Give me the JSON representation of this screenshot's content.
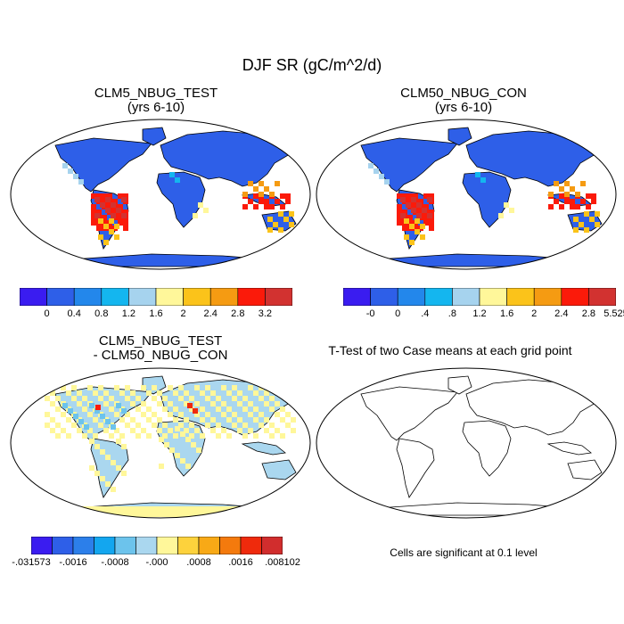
{
  "figure": {
    "title": "DJF SR (gC/m^2/d)",
    "panels": [
      {
        "id": "test",
        "title_line1": "CLM5_NBUG_TEST",
        "title_line2": "(yrs 6-10)",
        "colorbar": {
          "colors": [
            "#3a1cf0",
            "#2e5fe8",
            "#2387eb",
            "#14b6ef",
            "#a6d3ee",
            "#fff79a",
            "#fbc31a",
            "#f59b12",
            "#fb1a0a",
            "#d23230"
          ],
          "labels": [
            "0",
            "0.4",
            "0.8",
            "1.2",
            "1.6",
            "2",
            "2.4",
            "2.8",
            "3.2"
          ]
        }
      },
      {
        "id": "control",
        "title_line1": "CLM50_NBUG_CON",
        "title_line2": "(yrs 6-10)",
        "colorbar": {
          "colors": [
            "#3a1cf0",
            "#2e5fe8",
            "#2387eb",
            "#14b6ef",
            "#a6d3ee",
            "#fff79a",
            "#fbc31a",
            "#f59b12",
            "#fb1a0a",
            "#d23230"
          ],
          "labels": [
            "-0",
            "0",
            ".4",
            ".8",
            "1.2",
            "1.6",
            "2",
            "2.4",
            "2.8",
            "5.525"
          ]
        }
      },
      {
        "id": "difference",
        "title_line1": "CLM5_NBUG_TEST",
        "title_line2": "- CLM50_NBUG_CON",
        "colorbar": {
          "colors": [
            "#3a1cf0",
            "#2e5fe8",
            "#2c7fea",
            "#13a6ef",
            "#6cc3ec",
            "#aad7ef",
            "#fff79a",
            "#fdd23c",
            "#f8a916",
            "#f47a0d",
            "#ef2a0c",
            "#d12d2d"
          ],
          "labels": [
            "-.031573",
            "-.0016",
            "-.0008",
            "-.000",
            ".0008",
            ".0016",
            ".008102"
          ]
        }
      },
      {
        "id": "ttest",
        "title": "T-Test of two Case means at each grid point",
        "caption": "Cells are significant at 0.1 level"
      }
    ]
  }
}
